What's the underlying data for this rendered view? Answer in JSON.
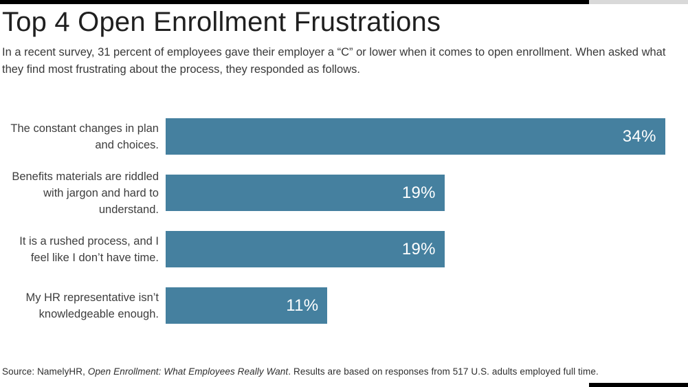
{
  "page": {
    "title": "Top 4 Open Enrollment Frustrations",
    "subtitle": "In a recent survey, 31 percent of employees gave their employer a “C” or lower when it comes to open enrollment. When asked what they find most frustrating about the process, they responded as follows.",
    "source": {
      "prefix": "Source: NamelyHR, ",
      "italic_title": "Open Enrollment: What Employees Really Want",
      "suffix": ". Results are based on responses from 517 U.S. adults employed full time."
    }
  },
  "colors": {
    "bar": "#45809f",
    "value_label": "#ffffff",
    "top_rule_black": "#000000",
    "top_rule_gray": "#d9d9d9",
    "bottom_rule_black": "#000000"
  },
  "chart_data": {
    "type": "bar",
    "orientation": "horizontal",
    "title": "Top 4 Open Enrollment Frustrations",
    "categories": [
      "The constant changes in plan and choices.",
      "Benefits materials are riddled with jargon and hard to understand.",
      "It is a rushed process, and I feel like I don’t have time.",
      "My HR representative isn’t knowledgeable enough."
    ],
    "values": [
      34,
      19,
      19,
      11
    ],
    "value_labels": [
      "34%",
      "19%",
      "19%",
      "11%"
    ],
    "bar_color": "#45809f",
    "axis_max_value": 34,
    "max_bar_width_pct": 96,
    "xlim": [
      0,
      34
    ],
    "grid": false,
    "legend": false
  }
}
